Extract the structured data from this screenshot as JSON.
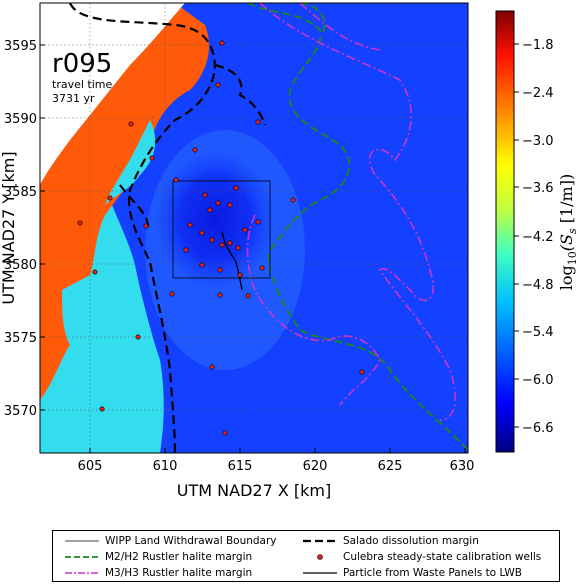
{
  "run_label": "r095",
  "travel_time_label": "travel time",
  "travel_time_value": "3731 yr",
  "x_axis": {
    "label": "UTM NAD27 X [km]",
    "ticks": [
      "605",
      "610",
      "615",
      "620",
      "625",
      "630"
    ],
    "range": [
      601.5,
      630
    ]
  },
  "y_axis": {
    "label": "UTM NAD27 Y [km]",
    "ticks": [
      "3570",
      "3575",
      "3580",
      "3585",
      "3590",
      "3595"
    ],
    "range": [
      3566.5,
      3597.5
    ]
  },
  "colorbar": {
    "label_prefix": "log",
    "label_sub": "10",
    "label_body": "(S",
    "label_s_sub": "s",
    "label_suffix": " [1/m])",
    "ticks": [
      "−1.8",
      "−2.4",
      "−3.0",
      "−3.6",
      "−4.2",
      "−4.8",
      "−5.4",
      "−6.0",
      "−6.6"
    ],
    "range": [
      -7.2,
      -1.4
    ]
  },
  "legend": {
    "wipp_boundary": "WIPP Land Withdrawal Boundary",
    "m2h2": "M2/H2 Rustler halite margin",
    "m3h3": "M3/H3 Rustler halite margin",
    "salado": "Salado dissolution margin",
    "wells": "Culebra steady-state calibration wells",
    "particle": "Particle from Waste Panels to LWB"
  },
  "colors": {
    "orange_zone": "#ff5a0a",
    "cyan_zone": "#33ddee",
    "blue_field": "#1440ff",
    "deep_blue": "#0a1ae0",
    "green_margin": "#1a8a1a",
    "magenta_margin": "#cc33cc",
    "well_fill": "#dd2222"
  }
}
